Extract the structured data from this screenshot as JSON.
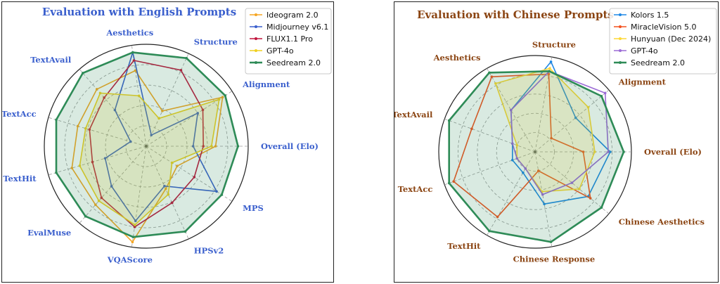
{
  "chart_data": [
    {
      "type": "radar",
      "title": "Evaluation with English Prompts",
      "title_color": "#3a5fcd",
      "axis_color": "#3a5fcd",
      "axes": [
        "Overall (Elo)",
        "Alignment",
        "Structure",
        "Aesthetics",
        "TextAvail",
        "TextAcc",
        "TextHit",
        "EvalMuse",
        "VQAScore",
        "HPSv2",
        "MPS"
      ],
      "rlim": [
        0,
        1
      ],
      "rings": 5,
      "grid": true,
      "legend_position": "top-right",
      "series": [
        {
          "name": "Ideogram 2.0",
          "color": "#f5a623",
          "fill": false,
          "values": [
            0.68,
            0.89,
            0.38,
            0.75,
            0.74,
            0.7,
            0.76,
            0.76,
            0.95,
            0.46,
            0.36
          ]
        },
        {
          "name": "Midjourney v6.1",
          "color": "#3a5fcd",
          "fill": false,
          "values": [
            0.46,
            0.6,
            0.12,
            0.93,
            0.47,
            0.16,
            0.42,
            0.52,
            0.74,
            0.43,
            0.82
          ]
        },
        {
          "name": "FLUX1.1 Pro",
          "color": "#c0143c",
          "fill": false,
          "values": [
            0.56,
            0.66,
            0.82,
            0.85,
            0.63,
            0.58,
            0.55,
            0.67,
            0.8,
            0.61,
            0.56
          ]
        },
        {
          "name": "GPT-4o",
          "color": "#f0d020",
          "fill": true,
          "values": [
            0.64,
            0.85,
            0.3,
            0.5,
            0.69,
            0.62,
            0.68,
            0.71,
            0.78,
            0.52,
            0.3
          ]
        },
        {
          "name": "Seedream 2.0",
          "color": "#2e8b57",
          "fill": true,
          "values": [
            0.9,
            0.92,
            0.95,
            0.93,
            0.95,
            0.92,
            0.92,
            0.91,
            0.9,
            0.92,
            0.88
          ]
        }
      ]
    },
    {
      "type": "radar",
      "title": "Evaluation with Chinese Prompts",
      "title_color": "#8b4513",
      "axis_color": "#8b4513",
      "axes": [
        "Overall (Elo)",
        "Alignment",
        "Structure",
        "Aesthetics",
        "TextAvail",
        "TextAcc",
        "TextHit",
        "Chinese Response",
        "Chinese Aesthetics"
      ],
      "rlim": [
        0,
        1
      ],
      "rings": 5,
      "grid": true,
      "legend_position": "top-right",
      "series": [
        {
          "name": "Kolors 1.5",
          "color": "#1e88e5",
          "fill": false,
          "values": [
            0.78,
            0.55,
            0.95,
            0.5,
            0.25,
            0.25,
            0.25,
            0.55,
            0.72
          ]
        },
        {
          "name": "MiracleVision 5.0",
          "color": "#f4511e",
          "fill": false,
          "values": [
            0.5,
            0.22,
            0.82,
            0.9,
            0.7,
            0.9,
            0.78,
            0.2,
            0.75
          ]
        },
        {
          "name": "Hunyuan (Dec 2024)",
          "color": "#fdd835",
          "fill": true,
          "values": [
            0.62,
            0.72,
            0.88,
            0.82,
            0.2,
            0.2,
            0.2,
            0.42,
            0.6
          ]
        },
        {
          "name": "GPT-4o",
          "color": "#9c6bd6",
          "fill": false,
          "values": [
            0.76,
            0.95,
            0.85,
            0.5,
            0.25,
            0.2,
            0.2,
            0.45,
            0.5
          ]
        },
        {
          "name": "Seedream 2.0",
          "color": "#2e8b57",
          "fill": true,
          "values": [
            0.92,
            0.9,
            0.85,
            0.95,
            0.95,
            0.95,
            0.95,
            0.95,
            0.9
          ]
        }
      ]
    }
  ]
}
